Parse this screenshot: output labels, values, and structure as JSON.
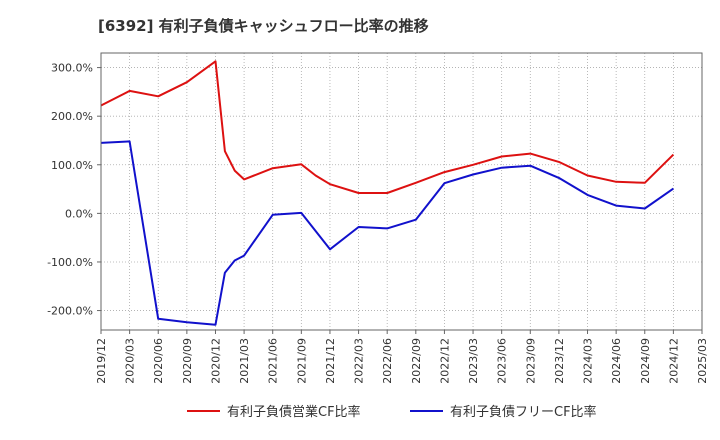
{
  "chart_data": {
    "type": "line",
    "title": "[6392]  有利子負債キャッシュフロー比率の推移",
    "x": [
      "2019/12",
      "2020/03",
      "2020/06",
      "2020/09",
      "2020/12",
      "2021/03",
      "2021/06",
      "2021/09",
      "2021/12",
      "2022/03",
      "2022/06",
      "2022/09",
      "2022/12",
      "2023/03",
      "2023/06",
      "2023/09",
      "2023/12",
      "2024/03",
      "2024/06",
      "2024/09",
      "2024/12",
      "2025/03"
    ],
    "ylim": [
      -240,
      330
    ],
    "yticks": [
      300,
      200,
      100,
      0,
      -100,
      -200
    ],
    "ytick_labels": [
      "300.0%",
      "200.0%",
      "100.0%",
      "0.0%",
      "-100.0%",
      "-200.0%"
    ],
    "grid": "dotted",
    "legend_position": "bottom",
    "series": [
      {
        "name": "有利子負債営業CF比率",
        "color": "#dd1111",
        "points": [
          [
            0,
            222
          ],
          [
            1,
            252
          ],
          [
            2,
            241
          ],
          [
            3,
            270
          ],
          [
            4,
            313
          ],
          [
            4.33,
            128
          ],
          [
            4.67,
            88
          ],
          [
            5,
            70
          ],
          [
            6,
            93
          ],
          [
            7,
            101
          ],
          [
            7.5,
            78
          ],
          [
            8,
            60
          ],
          [
            9,
            42
          ],
          [
            10,
            42
          ],
          [
            11,
            63
          ],
          [
            12,
            85
          ],
          [
            13,
            100
          ],
          [
            14,
            117
          ],
          [
            15,
            123
          ],
          [
            16,
            106
          ],
          [
            17,
            78
          ],
          [
            18,
            65
          ],
          [
            19,
            63
          ],
          [
            20,
            121
          ]
        ]
      },
      {
        "name": "有利子負債フリーCF比率",
        "color": "#1111cc",
        "points": [
          [
            0,
            145
          ],
          [
            1,
            148
          ],
          [
            2,
            -217
          ],
          [
            3,
            -224
          ],
          [
            4,
            -229
          ],
          [
            4.33,
            -122
          ],
          [
            4.67,
            -97
          ],
          [
            5,
            -87
          ],
          [
            6,
            -3
          ],
          [
            7,
            1
          ],
          [
            8,
            -74
          ],
          [
            9,
            -28
          ],
          [
            10,
            -31
          ],
          [
            11,
            -13
          ],
          [
            12,
            62
          ],
          [
            13,
            80
          ],
          [
            14,
            94
          ],
          [
            15,
            98
          ],
          [
            16,
            73
          ],
          [
            17,
            38
          ],
          [
            18,
            16
          ],
          [
            19,
            10
          ],
          [
            20,
            51
          ]
        ]
      }
    ]
  }
}
